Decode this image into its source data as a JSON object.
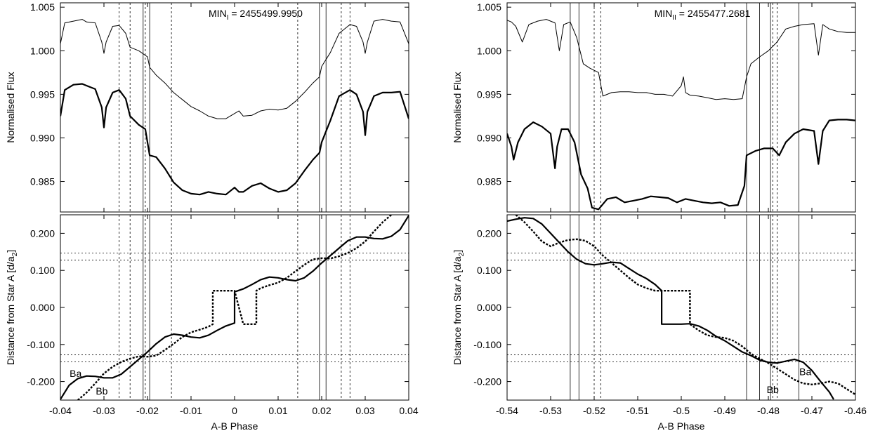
{
  "chart_data": [
    {
      "type": "line",
      "panel": "top-left",
      "annotation": "MIN",
      "annotation_sub": "I",
      "annotation_value": " = 2455499.9950",
      "ylabel": "Normalised Flux",
      "xlabel": "",
      "xlim": [
        -0.04,
        0.04
      ],
      "ylim": [
        0.9815,
        1.0055
      ],
      "yticks": [
        "0.985",
        "0.990",
        "0.995",
        "1.000",
        "1.005"
      ],
      "ytick_values": [
        0.985,
        0.99,
        0.995,
        1.0,
        1.005
      ],
      "xticks": [],
      "solid_vlines": [
        -0.021,
        -0.0195,
        0.0195,
        0.021
      ],
      "dashed_vlines": [
        -0.0265,
        -0.024,
        -0.0205,
        -0.0145,
        0.0145,
        0.0245,
        0.0265
      ],
      "series": [
        {
          "style": "thin",
          "x": [
            -0.04,
            -0.039,
            -0.037,
            -0.035,
            -0.034,
            -0.032,
            -0.0305,
            -0.03,
            -0.0295,
            -0.028,
            -0.0265,
            -0.025,
            -0.024,
            -0.022,
            -0.02,
            -0.0195,
            -0.018,
            -0.016,
            -0.014,
            -0.012,
            -0.01,
            -0.008,
            -0.006,
            -0.004,
            -0.002,
            0,
            0.001,
            0.002,
            0.004,
            0.006,
            0.008,
            0.01,
            0.012,
            0.014,
            0.016,
            0.018,
            0.0195,
            0.02,
            0.022,
            0.024,
            0.0265,
            0.028,
            0.0295,
            0.03,
            0.0305,
            0.032,
            0.034,
            0.036,
            0.038,
            0.04
          ],
          "y": [
            1.0008,
            1.0032,
            1.0034,
            1.0036,
            1.0033,
            1.0032,
            1.001,
            0.9997,
            1.001,
            1.0028,
            1.0029,
            1.002,
            1.0004,
            1.0,
            0.9993,
            0.9981,
            0.9972,
            0.9963,
            0.9952,
            0.9944,
            0.9936,
            0.9931,
            0.9925,
            0.9922,
            0.9922,
            0.9928,
            0.9931,
            0.9925,
            0.9926,
            0.9931,
            0.9933,
            0.9932,
            0.9934,
            0.9942,
            0.9952,
            0.9963,
            0.997,
            0.9982,
            0.9998,
            1.002,
            1.003,
            1.0028,
            1.001,
            0.9997,
            1.001,
            1.0034,
            1.0036,
            1.0034,
            1.0033,
            1.0008
          ]
        },
        {
          "style": "thick",
          "x": [
            -0.04,
            -0.039,
            -0.037,
            -0.035,
            -0.034,
            -0.032,
            -0.0305,
            -0.03,
            -0.0295,
            -0.028,
            -0.0265,
            -0.025,
            -0.024,
            -0.022,
            -0.0205,
            -0.02,
            -0.0195,
            -0.018,
            -0.016,
            -0.014,
            -0.012,
            -0.01,
            -0.008,
            -0.006,
            -0.004,
            -0.002,
            0,
            0.001,
            0.002,
            0.004,
            0.006,
            0.008,
            0.01,
            0.012,
            0.014,
            0.016,
            0.018,
            0.0195,
            0.02,
            0.022,
            0.024,
            0.0265,
            0.028,
            0.0295,
            0.03,
            0.0305,
            0.032,
            0.034,
            0.036,
            0.038,
            0.04
          ],
          "y": [
            0.9925,
            0.9955,
            0.9961,
            0.9962,
            0.996,
            0.9956,
            0.9935,
            0.9912,
            0.9935,
            0.9952,
            0.9955,
            0.9945,
            0.9925,
            0.9915,
            0.991,
            0.9895,
            0.988,
            0.9878,
            0.9865,
            0.9849,
            0.984,
            0.9836,
            0.9835,
            0.9838,
            0.9836,
            0.9835,
            0.9843,
            0.9838,
            0.9838,
            0.9845,
            0.9848,
            0.9842,
            0.9838,
            0.984,
            0.9848,
            0.9862,
            0.9875,
            0.9883,
            0.9895,
            0.992,
            0.9948,
            0.9955,
            0.995,
            0.993,
            0.9903,
            0.993,
            0.9948,
            0.9952,
            0.9952,
            0.9953,
            0.9922
          ]
        }
      ]
    },
    {
      "type": "line",
      "panel": "bottom-left",
      "ylabel": "Distance from Star A [d/a",
      "ylabel_sub": "2",
      "ylabel_end": "]",
      "xlabel": "A-B Phase",
      "xlim": [
        -0.04,
        0.04
      ],
      "ylim": [
        -0.25,
        0.25
      ],
      "yticks": [
        "-0.200",
        "-0.100",
        "0.000",
        "0.100",
        "0.200"
      ],
      "ytick_values": [
        -0.2,
        -0.1,
        0.0,
        0.1,
        0.2
      ],
      "xticks": [
        "-0.04",
        "-0.03",
        "-0.02",
        "-0.01",
        "0",
        "0.01",
        "0.02",
        "0.03",
        "0.04"
      ],
      "xtick_values": [
        -0.04,
        -0.03,
        -0.02,
        -0.01,
        0,
        0.01,
        0.02,
        0.03,
        0.04
      ],
      "hlines": [
        0.147,
        0.128,
        -0.128,
        -0.147
      ],
      "solid_vlines": [
        -0.021,
        -0.0195,
        0.0195,
        0.021
      ],
      "dashed_vlines": [
        -0.0265,
        -0.024,
        -0.0205,
        -0.0145,
        0.0145,
        0.0245,
        0.0265
      ],
      "series_labels": [
        {
          "text": "Ba",
          "x": -0.0365,
          "y": -0.178
        },
        {
          "text": "Bb",
          "x": -0.0305,
          "y": -0.225
        }
      ],
      "series": [
        {
          "style": "solid",
          "x": [
            -0.04,
            -0.038,
            -0.036,
            -0.034,
            -0.032,
            -0.03,
            -0.028,
            -0.026,
            -0.024,
            -0.022,
            -0.02,
            -0.018,
            -0.016,
            -0.014,
            -0.012,
            -0.01,
            -0.008,
            -0.006,
            -0.004,
            -0.002,
            0,
            0,
            0.002,
            0.004,
            0.006,
            0.008,
            0.01,
            0.012,
            0.014,
            0.016,
            0.018,
            0.02,
            0.022,
            0.024,
            0.026,
            0.028,
            0.03,
            0.032,
            0.034,
            0.036,
            0.038,
            0.04
          ],
          "y": [
            -0.248,
            -0.21,
            -0.192,
            -0.185,
            -0.186,
            -0.19,
            -0.19,
            -0.18,
            -0.16,
            -0.14,
            -0.12,
            -0.098,
            -0.08,
            -0.072,
            -0.075,
            -0.08,
            -0.082,
            -0.075,
            -0.062,
            -0.05,
            -0.042,
            0.042,
            0.05,
            0.062,
            0.075,
            0.082,
            0.08,
            0.075,
            0.072,
            0.08,
            0.098,
            0.12,
            0.14,
            0.16,
            0.18,
            0.19,
            0.19,
            0.186,
            0.185,
            0.192,
            0.21,
            0.248
          ]
        },
        {
          "style": "dotted",
          "x": [
            -0.036,
            -0.034,
            -0.032,
            -0.03,
            -0.028,
            -0.026,
            -0.024,
            -0.022,
            -0.02,
            -0.018,
            -0.016,
            -0.014,
            -0.012,
            -0.01,
            -0.008,
            -0.006,
            -0.005,
            -0.005,
            -0.004,
            -0.002,
            0,
            0.002,
            0.004,
            0.005,
            0.005,
            0.006,
            0.008,
            0.01,
            0.012,
            0.014,
            0.016,
            0.018,
            0.02,
            0.022,
            0.024,
            0.026,
            0.028,
            0.03,
            0.032,
            0.034,
            0.036
          ],
          "y": [
            -0.25,
            -0.23,
            -0.205,
            -0.178,
            -0.16,
            -0.147,
            -0.138,
            -0.132,
            -0.133,
            -0.13,
            -0.115,
            -0.098,
            -0.08,
            -0.067,
            -0.06,
            -0.052,
            -0.045,
            0.045,
            0.045,
            0.045,
            0.045,
            -0.045,
            -0.045,
            -0.045,
            0.045,
            0.052,
            0.06,
            0.067,
            0.08,
            0.098,
            0.115,
            0.13,
            0.133,
            0.132,
            0.138,
            0.147,
            0.16,
            0.178,
            0.205,
            0.23,
            0.25
          ]
        }
      ]
    },
    {
      "type": "line",
      "panel": "top-right",
      "annotation": "MIN",
      "annotation_sub": "II",
      "annotation_value": " = 2455477.2681",
      "ylabel": "Normalised Flux",
      "xlabel": "",
      "xlim": [
        -0.54,
        -0.46
      ],
      "ylim": [
        0.9815,
        1.0055
      ],
      "yticks": [
        "0.985",
        "0.990",
        "0.995",
        "1.000",
        "1.005"
      ],
      "ytick_values": [
        0.985,
        0.99,
        0.995,
        1.0,
        1.005
      ],
      "xticks": [],
      "solid_vlines": [
        -0.5255,
        -0.5235,
        -0.485,
        -0.482,
        -0.4795,
        -0.473
      ],
      "dashed_vlines": [
        -0.52,
        -0.5185,
        -0.479,
        -0.478
      ],
      "series": [
        {
          "style": "thin",
          "x": [
            -0.54,
            -0.539,
            -0.538,
            -0.5365,
            -0.535,
            -0.533,
            -0.531,
            -0.529,
            -0.528,
            -0.527,
            -0.5255,
            -0.524,
            -0.5225,
            -0.521,
            -0.519,
            -0.518,
            -0.516,
            -0.514,
            -0.512,
            -0.51,
            -0.508,
            -0.506,
            -0.504,
            -0.502,
            -0.5,
            -0.4995,
            -0.499,
            -0.498,
            -0.496,
            -0.494,
            -0.492,
            -0.49,
            -0.488,
            -0.486,
            -0.485,
            -0.484,
            -0.482,
            -0.48,
            -0.478,
            -0.476,
            -0.474,
            -0.472,
            -0.4695,
            -0.4685,
            -0.4675,
            -0.466,
            -0.464,
            -0.462,
            -0.46
          ],
          "y": [
            1.0035,
            1.0033,
            1.0028,
            1.001,
            1.003,
            1.0034,
            1.0036,
            1.0032,
            1.0,
            1.003,
            1.0033,
            1.0015,
            0.9985,
            0.998,
            0.9975,
            0.9948,
            0.9952,
            0.9953,
            0.9953,
            0.9952,
            0.9952,
            0.995,
            0.995,
            0.9948,
            0.996,
            0.997,
            0.9952,
            0.9949,
            0.9948,
            0.9946,
            0.9944,
            0.9945,
            0.9944,
            0.9945,
            0.997,
            0.9985,
            0.9993,
            1.0,
            1.001,
            1.0025,
            1.0028,
            1.003,
            1.0031,
            0.9995,
            1.003,
            1.0025,
            1.0022,
            1.0021,
            1.0021
          ]
        },
        {
          "style": "thick",
          "x": [
            -0.54,
            -0.539,
            -0.5385,
            -0.5375,
            -0.536,
            -0.534,
            -0.532,
            -0.53,
            -0.529,
            -0.5285,
            -0.5275,
            -0.526,
            -0.5245,
            -0.523,
            -0.5215,
            -0.5205,
            -0.519,
            -0.517,
            -0.515,
            -0.513,
            -0.511,
            -0.509,
            -0.507,
            -0.505,
            -0.503,
            -0.501,
            -0.5,
            -0.499,
            -0.497,
            -0.495,
            -0.493,
            -0.491,
            -0.489,
            -0.487,
            -0.4855,
            -0.485,
            -0.483,
            -0.481,
            -0.479,
            -0.4775,
            -0.476,
            -0.474,
            -0.472,
            -0.4695,
            -0.4685,
            -0.4675,
            -0.466,
            -0.464,
            -0.462,
            -0.46
          ],
          "y": [
            0.9905,
            0.989,
            0.9875,
            0.9895,
            0.991,
            0.9918,
            0.9913,
            0.9905,
            0.9865,
            0.989,
            0.991,
            0.991,
            0.9895,
            0.9858,
            0.9842,
            0.982,
            0.9818,
            0.983,
            0.9832,
            0.9826,
            0.9828,
            0.983,
            0.9833,
            0.9832,
            0.9831,
            0.9826,
            0.9828,
            0.983,
            0.9828,
            0.9826,
            0.9825,
            0.9826,
            0.9822,
            0.9823,
            0.9845,
            0.988,
            0.9885,
            0.9888,
            0.9888,
            0.988,
            0.9895,
            0.9905,
            0.991,
            0.9908,
            0.987,
            0.9908,
            0.992,
            0.9921,
            0.9921,
            0.992
          ]
        }
      ]
    },
    {
      "type": "line",
      "panel": "bottom-right",
      "ylabel": "Distance from Star A [d/a",
      "ylabel_sub": "2",
      "ylabel_end": "]",
      "xlabel": "A-B Phase",
      "xlim": [
        -0.54,
        -0.46
      ],
      "ylim": [
        -0.25,
        0.25
      ],
      "yticks": [
        "-0.200",
        "-0.100",
        "0.000",
        "0.100",
        "0.200"
      ],
      "ytick_values": [
        -0.2,
        -0.1,
        0.0,
        0.1,
        0.2
      ],
      "xticks": [
        "-0.54",
        "-0.53",
        "-0.52",
        "-0.51",
        "-0.5",
        "-0.49",
        "-0.48",
        "-0.47",
        "-0.46"
      ],
      "xtick_values": [
        -0.54,
        -0.53,
        -0.52,
        -0.51,
        -0.5,
        -0.49,
        -0.48,
        -0.47,
        -0.46
      ],
      "hlines": [
        0.147,
        0.128,
        -0.128,
        -0.147
      ],
      "solid_vlines": [
        -0.5255,
        -0.5235,
        -0.485,
        -0.482,
        -0.4795,
        -0.473
      ],
      "dashed_vlines": [
        -0.52,
        -0.5185,
        -0.479,
        -0.478
      ],
      "series_labels": [
        {
          "text": "Ba",
          "x": -0.4715,
          "y": -0.173
        },
        {
          "text": "Bb",
          "x": -0.479,
          "y": -0.222
        }
      ],
      "series": [
        {
          "style": "solid",
          "x": [
            -0.54,
            -0.538,
            -0.536,
            -0.534,
            -0.532,
            -0.53,
            -0.528,
            -0.526,
            -0.524,
            -0.522,
            -0.52,
            -0.518,
            -0.516,
            -0.514,
            -0.512,
            -0.51,
            -0.508,
            -0.506,
            -0.5045,
            -0.5045,
            -0.502,
            -0.5,
            -0.498,
            -0.496,
            -0.494,
            -0.492,
            -0.49,
            -0.488,
            -0.486,
            -0.484,
            -0.482,
            -0.48,
            -0.478,
            -0.476,
            -0.474,
            -0.472,
            -0.47,
            -0.468,
            -0.466,
            -0.465
          ],
          "y": [
            0.233,
            0.238,
            0.242,
            0.24,
            0.225,
            0.2,
            0.175,
            0.15,
            0.13,
            0.118,
            0.115,
            0.118,
            0.122,
            0.12,
            0.105,
            0.09,
            0.078,
            0.062,
            0.045,
            -0.045,
            -0.045,
            -0.045,
            -0.044,
            -0.05,
            -0.062,
            -0.078,
            -0.09,
            -0.105,
            -0.12,
            -0.13,
            -0.142,
            -0.148,
            -0.15,
            -0.145,
            -0.14,
            -0.148,
            -0.17,
            -0.2,
            -0.228,
            -0.248
          ]
        },
        {
          "style": "dotted",
          "x": [
            -0.538,
            -0.536,
            -0.534,
            -0.532,
            -0.53,
            -0.528,
            -0.526,
            -0.524,
            -0.522,
            -0.52,
            -0.518,
            -0.516,
            -0.514,
            -0.512,
            -0.51,
            -0.508,
            -0.506,
            -0.504,
            -0.502,
            -0.5,
            -0.498,
            -0.498,
            -0.496,
            -0.494,
            -0.492,
            -0.49,
            -0.488,
            -0.486,
            -0.484,
            -0.482,
            -0.48,
            -0.478,
            -0.476,
            -0.474,
            -0.472,
            -0.47,
            -0.468,
            -0.466,
            -0.464,
            -0.462,
            -0.46
          ],
          "y": [
            0.25,
            0.23,
            0.205,
            0.178,
            0.165,
            0.175,
            0.182,
            0.184,
            0.18,
            0.165,
            0.14,
            0.12,
            0.1,
            0.08,
            0.062,
            0.052,
            0.045,
            0.045,
            0.045,
            0.045,
            0.045,
            -0.045,
            -0.062,
            -0.075,
            -0.08,
            -0.082,
            -0.09,
            -0.105,
            -0.125,
            -0.138,
            -0.15,
            -0.165,
            -0.18,
            -0.195,
            -0.205,
            -0.208,
            -0.205,
            -0.2,
            -0.205,
            -0.22,
            -0.235
          ]
        }
      ]
    }
  ]
}
